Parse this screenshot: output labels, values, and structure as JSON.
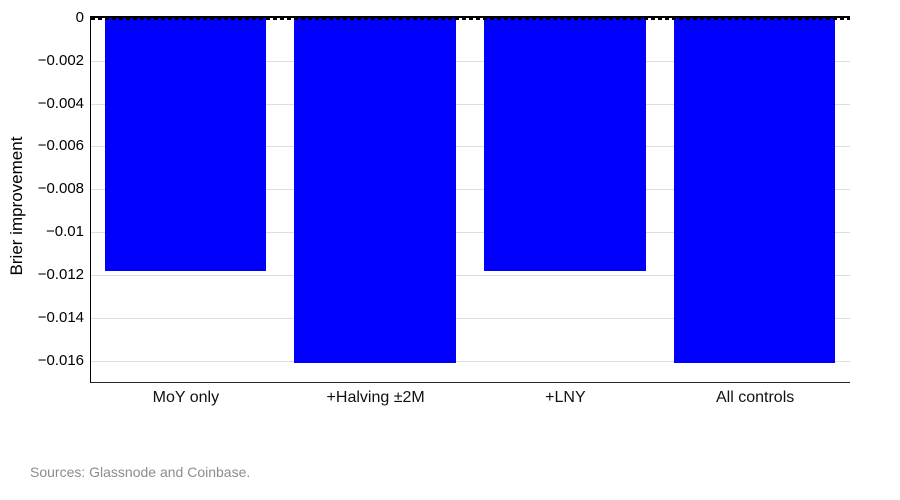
{
  "chart_data": {
    "type": "bar",
    "title": "",
    "categories": [
      "MoY only",
      "+Halving ±2M",
      "+LNY",
      "All controls"
    ],
    "values": [
      -0.0118,
      -0.0161,
      -0.0118,
      -0.0161
    ],
    "xlabel": "",
    "ylabel": "Brier improvement",
    "ylim": [
      -0.017,
      0
    ],
    "yticks": [
      0,
      -0.002,
      -0.004,
      -0.006,
      -0.008,
      -0.01,
      -0.012,
      -0.014,
      -0.016
    ],
    "ytick_labels": [
      "0",
      "−0.002",
      "−0.004",
      "−0.006",
      "−0.008",
      "−0.01",
      "−0.012",
      "−0.014",
      "−0.016"
    ],
    "grid": true,
    "legend": false,
    "zero_line_style": "dashed",
    "bar_color": "#0000fc",
    "grid_color": "#dedede",
    "bar_width_fraction": 0.85
  },
  "footer": {
    "source_note": "Sources: Glassnode and Coinbase."
  },
  "colors": {
    "background": "#ffffff",
    "axis": "#000000",
    "footer_text": "#8c8c8c"
  }
}
